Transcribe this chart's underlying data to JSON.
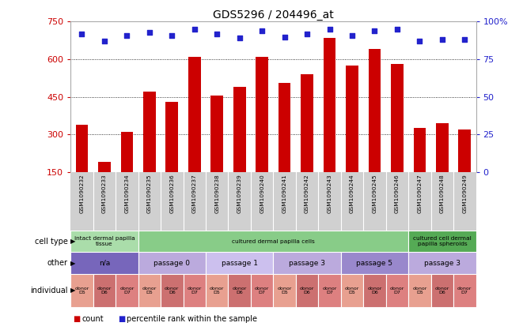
{
  "title": "GDS5296 / 204496_at",
  "bar_values": [
    340,
    190,
    310,
    470,
    430,
    610,
    455,
    490,
    610,
    505,
    540,
    685,
    575,
    640,
    580,
    325,
    345,
    320
  ],
  "percentile_values": [
    92,
    87,
    91,
    93,
    91,
    95,
    92,
    89,
    94,
    90,
    92,
    95,
    91,
    94,
    95,
    87,
    88,
    88
  ],
  "gsm_labels": [
    "GSM1090232",
    "GSM1090233",
    "GSM1090234",
    "GSM1090235",
    "GSM1090236",
    "GSM1090237",
    "GSM1090238",
    "GSM1090239",
    "GSM1090240",
    "GSM1090241",
    "GSM1090242",
    "GSM1090243",
    "GSM1090244",
    "GSM1090245",
    "GSM1090246",
    "GSM1090247",
    "GSM1090248",
    "GSM1090249"
  ],
  "ylim_left": [
    150,
    750
  ],
  "ylim_right": [
    0,
    100
  ],
  "yticks_left": [
    150,
    300,
    450,
    600,
    750
  ],
  "yticks_right": [
    0,
    25,
    50,
    75,
    100
  ],
  "bar_color": "#cc0000",
  "dot_color": "#2222cc",
  "grid_values": [
    300,
    450,
    600
  ],
  "cell_type_groups": [
    {
      "label": "intact dermal papilla\ntissue",
      "start": 0,
      "end": 3,
      "color": "#aaddaa"
    },
    {
      "label": "cultured dermal papilla cells",
      "start": 3,
      "end": 15,
      "color": "#88cc88"
    },
    {
      "label": "cultured cell dermal\npapilla spheroids",
      "start": 15,
      "end": 18,
      "color": "#55aa55"
    }
  ],
  "other_groups": [
    {
      "label": "n/a",
      "start": 0,
      "end": 3,
      "color": "#7766bb"
    },
    {
      "label": "passage 0",
      "start": 3,
      "end": 6,
      "color": "#bbaadd"
    },
    {
      "label": "passage 1",
      "start": 6,
      "end": 9,
      "color": "#ccc0ee"
    },
    {
      "label": "passage 3",
      "start": 9,
      "end": 12,
      "color": "#bbaadd"
    },
    {
      "label": "passage 5",
      "start": 12,
      "end": 15,
      "color": "#9988cc"
    },
    {
      "label": "passage 3",
      "start": 15,
      "end": 18,
      "color": "#bbaadd"
    }
  ],
  "individual_labels": [
    "donor\nD5",
    "donor\nD6",
    "donor\nD7",
    "donor\nD5",
    "donor\nD6",
    "donor\nD7",
    "donor\nD5",
    "donor\nD6",
    "donor\nD7",
    "donor\nD5",
    "donor\nD6",
    "donor\nD7",
    "donor\nD5",
    "donor\nD6",
    "donor\nD7",
    "donor\nD5",
    "donor\nD6",
    "donor\nD7"
  ],
  "individual_colors": [
    "#e8a090",
    "#cc7070",
    "#dd8080",
    "#e8a090",
    "#cc7070",
    "#dd8080",
    "#e8a090",
    "#cc7070",
    "#dd8080",
    "#e8a090",
    "#cc7070",
    "#dd8080",
    "#e8a090",
    "#cc7070",
    "#dd8080",
    "#e8a090",
    "#cc7070",
    "#dd8080"
  ],
  "n_bars": 18,
  "bar_width": 0.55,
  "background_color": "#ffffff",
  "tick_color_left": "#cc0000",
  "tick_color_right": "#2222cc",
  "gsm_bg_color": "#d0d0d0",
  "row_labels": [
    "cell type",
    "other",
    "individual"
  ],
  "legend_count_color": "#cc0000",
  "legend_pct_color": "#2222cc"
}
